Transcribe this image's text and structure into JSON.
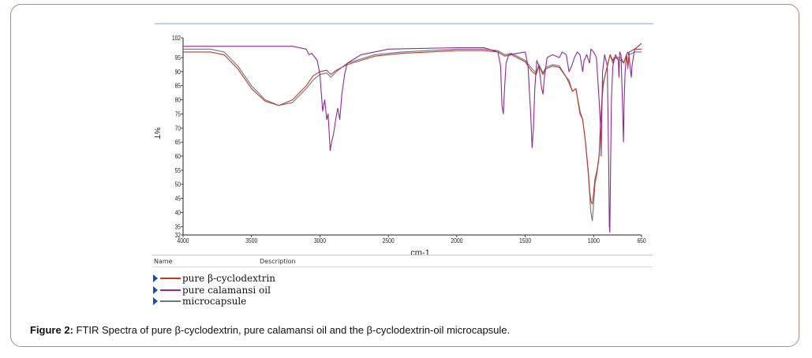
{
  "caption": {
    "label": "Figure 2:",
    "text": " FTIR Spectra of pure β-cyclodextrin, pure calamansi oil and the β-cyclodextrin-oil microcapsule."
  },
  "legend_table": {
    "col_name": "Name",
    "col_description": "Description"
  },
  "chart_data": {
    "type": "line",
    "xlabel": "cm-1",
    "ylabel": "%T",
    "xlim": [
      4000,
      650
    ],
    "ylim": [
      32,
      102
    ],
    "x_reversed": true,
    "x_ticks": [
      4000,
      3500,
      3000,
      2500,
      2000,
      1500,
      1000,
      650
    ],
    "y_ticks": [
      102,
      95,
      90,
      85,
      80,
      75,
      70,
      65,
      60,
      55,
      50,
      45,
      40,
      35,
      32
    ],
    "x_tick_labels": [
      "4000",
      "3500",
      "3000",
      "2500",
      "2000",
      "1500",
      "1000",
      "650"
    ],
    "y_tick_labels": [
      "102",
      "95",
      "90",
      "85",
      "80",
      "75",
      "70",
      "65",
      "60",
      "55",
      "50",
      "45",
      "40",
      "35",
      "32"
    ],
    "grid": false,
    "legend_position": "bottom-left",
    "series": [
      {
        "name": "pure β-cyclodextrin",
        "color": "#c0392b",
        "points": [
          [
            4000,
            97
          ],
          [
            3800,
            97
          ],
          [
            3700,
            96
          ],
          [
            3600,
            91
          ],
          [
            3500,
            84
          ],
          [
            3400,
            79.5
          ],
          [
            3300,
            78
          ],
          [
            3200,
            80
          ],
          [
            3100,
            85
          ],
          [
            3050,
            88.5
          ],
          [
            3000,
            90
          ],
          [
            2950,
            90.5
          ],
          [
            2920,
            89
          ],
          [
            2880,
            90.5
          ],
          [
            2800,
            92.5
          ],
          [
            2600,
            95.5
          ],
          [
            2400,
            96.5
          ],
          [
            2200,
            97
          ],
          [
            2000,
            97.5
          ],
          [
            1800,
            97.5
          ],
          [
            1700,
            97
          ],
          [
            1650,
            95.5
          ],
          [
            1600,
            96
          ],
          [
            1500,
            93.5
          ],
          [
            1450,
            90
          ],
          [
            1420,
            89
          ],
          [
            1400,
            92
          ],
          [
            1370,
            89
          ],
          [
            1350,
            91
          ],
          [
            1300,
            92
          ],
          [
            1250,
            91.5
          ],
          [
            1200,
            88
          ],
          [
            1180,
            86
          ],
          [
            1155,
            83
          ],
          [
            1130,
            84
          ],
          [
            1100,
            75
          ],
          [
            1080,
            73
          ],
          [
            1060,
            65
          ],
          [
            1040,
            55
          ],
          [
            1030,
            48
          ],
          [
            1020,
            44
          ],
          [
            1010,
            43
          ],
          [
            1000,
            47
          ],
          [
            990,
            52
          ],
          [
            975,
            55
          ],
          [
            960,
            60
          ],
          [
            950,
            72
          ],
          [
            940,
            80
          ],
          [
            930,
            86
          ],
          [
            920,
            88
          ],
          [
            900,
            92
          ],
          [
            880,
            96
          ],
          [
            860,
            94
          ],
          [
            850,
            95
          ],
          [
            800,
            95
          ],
          [
            780,
            93
          ],
          [
            760,
            96
          ],
          [
            750,
            92
          ],
          [
            740,
            97
          ],
          [
            700,
            98
          ],
          [
            650,
            98
          ]
        ]
      },
      {
        "name": "pure calamansi oil",
        "color": "#8e2b8e",
        "points": [
          [
            4000,
            99
          ],
          [
            3500,
            99
          ],
          [
            3200,
            99
          ],
          [
            3100,
            98
          ],
          [
            3080,
            96
          ],
          [
            3060,
            96.5
          ],
          [
            3020,
            94
          ],
          [
            3000,
            89
          ],
          [
            2980,
            76
          ],
          [
            2965,
            80
          ],
          [
            2950,
            73
          ],
          [
            2940,
            75
          ],
          [
            2925,
            62
          ],
          [
            2915,
            65
          ],
          [
            2900,
            68
          ],
          [
            2885,
            73
          ],
          [
            2870,
            77
          ],
          [
            2855,
            73
          ],
          [
            2840,
            82
          ],
          [
            2820,
            89
          ],
          [
            2800,
            93
          ],
          [
            2700,
            96
          ],
          [
            2500,
            98
          ],
          [
            2000,
            98.5
          ],
          [
            1800,
            98.5
          ],
          [
            1700,
            97
          ],
          [
            1680,
            92
          ],
          [
            1670,
            78
          ],
          [
            1660,
            75
          ],
          [
            1650,
            85
          ],
          [
            1640,
            93
          ],
          [
            1620,
            96
          ],
          [
            1500,
            97
          ],
          [
            1480,
            92
          ],
          [
            1460,
            75
          ],
          [
            1450,
            63
          ],
          [
            1440,
            70
          ],
          [
            1430,
            84
          ],
          [
            1415,
            94
          ],
          [
            1400,
            92
          ],
          [
            1380,
            84
          ],
          [
            1370,
            82
          ],
          [
            1360,
            88
          ],
          [
            1340,
            95
          ],
          [
            1300,
            96
          ],
          [
            1250,
            95
          ],
          [
            1230,
            97
          ],
          [
            1200,
            96
          ],
          [
            1180,
            90
          ],
          [
            1160,
            92
          ],
          [
            1140,
            95
          ],
          [
            1120,
            97
          ],
          [
            1100,
            96
          ],
          [
            1080,
            90
          ],
          [
            1070,
            94
          ],
          [
            1050,
            96
          ],
          [
            1030,
            93
          ],
          [
            1020,
            98
          ],
          [
            1000,
            97
          ],
          [
            980,
            95
          ],
          [
            960,
            80
          ],
          [
            950,
            70
          ],
          [
            945,
            60
          ],
          [
            940,
            75
          ],
          [
            935,
            90
          ],
          [
            920,
            96
          ],
          [
            900,
            92
          ],
          [
            890,
            56
          ],
          [
            885,
            35
          ],
          [
            882,
            33
          ],
          [
            878,
            50
          ],
          [
            870,
            80
          ],
          [
            860,
            92
          ],
          [
            840,
            96
          ],
          [
            820,
            94
          ],
          [
            815,
            88
          ],
          [
            810,
            97
          ],
          [
            800,
            96
          ],
          [
            790,
            80
          ],
          [
            785,
            70
          ],
          [
            782,
            65
          ],
          [
            778,
            78
          ],
          [
            770,
            90
          ],
          [
            760,
            96
          ],
          [
            750,
            97
          ],
          [
            740,
            95
          ],
          [
            730,
            90
          ],
          [
            725,
            88
          ],
          [
            720,
            92
          ],
          [
            700,
            98
          ],
          [
            650,
            100
          ]
        ]
      },
      {
        "name": "microcapsule",
        "color": "#6c7680",
        "points": [
          [
            4000,
            98
          ],
          [
            3800,
            98
          ],
          [
            3700,
            97
          ],
          [
            3600,
            92
          ],
          [
            3500,
            85
          ],
          [
            3400,
            80
          ],
          [
            3300,
            78
          ],
          [
            3200,
            79
          ],
          [
            3100,
            84
          ],
          [
            3050,
            87
          ],
          [
            3000,
            89
          ],
          [
            2950,
            89.5
          ],
          [
            2920,
            88
          ],
          [
            2880,
            90
          ],
          [
            2800,
            93
          ],
          [
            2600,
            96
          ],
          [
            2400,
            97
          ],
          [
            2200,
            97.5
          ],
          [
            2000,
            98
          ],
          [
            1800,
            98
          ],
          [
            1700,
            97.5
          ],
          [
            1650,
            96
          ],
          [
            1600,
            96.5
          ],
          [
            1500,
            94
          ],
          [
            1450,
            91
          ],
          [
            1420,
            89.5
          ],
          [
            1400,
            92.5
          ],
          [
            1370,
            89.5
          ],
          [
            1350,
            91.5
          ],
          [
            1300,
            92.5
          ],
          [
            1250,
            92
          ],
          [
            1200,
            88
          ],
          [
            1180,
            87
          ],
          [
            1155,
            83
          ],
          [
            1130,
            84
          ],
          [
            1100,
            76
          ],
          [
            1080,
            73
          ],
          [
            1060,
            65
          ],
          [
            1040,
            54
          ],
          [
            1030,
            47
          ],
          [
            1020,
            40
          ],
          [
            1010,
            37
          ],
          [
            1000,
            43
          ],
          [
            990,
            50
          ],
          [
            975,
            54
          ],
          [
            960,
            60
          ],
          [
            950,
            71
          ],
          [
            940,
            79
          ],
          [
            930,
            85
          ],
          [
            920,
            88
          ],
          [
            900,
            92
          ],
          [
            880,
            96
          ],
          [
            860,
            93
          ],
          [
            850,
            95
          ],
          [
            800,
            94
          ],
          [
            780,
            93
          ],
          [
            760,
            96
          ],
          [
            750,
            91
          ],
          [
            740,
            96
          ],
          [
            700,
            97
          ],
          [
            650,
            97
          ]
        ]
      }
    ]
  }
}
